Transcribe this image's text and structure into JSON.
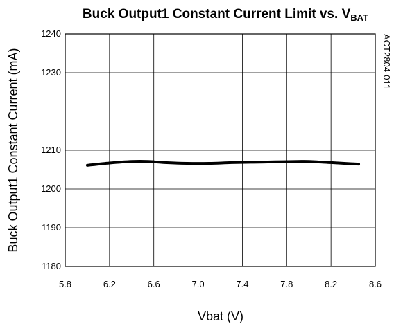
{
  "chart_data": {
    "type": "line",
    "title_main": "Buck Output1 Constant Current Limit vs. V",
    "title_sub": "BAT",
    "xlabel": "Vbat (V)",
    "ylabel": "Buck Output1 Constant Current (mA)",
    "side_label": "ACT2804-011",
    "xlim": [
      5.8,
      8.6
    ],
    "ylim": [
      1180,
      1240
    ],
    "x_ticks": [
      "5.8",
      "6.2",
      "6.6",
      "7.0",
      "7.4",
      "7.8",
      "8.2",
      "8.6"
    ],
    "y_ticks": [
      "1240",
      "1230",
      "1210",
      "1200",
      "1190",
      "1180"
    ],
    "y_tick_values": [
      1240,
      1230,
      1210,
      1200,
      1190,
      1180
    ],
    "x_tick_values": [
      5.8,
      6.2,
      6.6,
      7.0,
      7.4,
      7.8,
      8.2,
      8.6
    ],
    "grid": true,
    "series": [
      {
        "x": [
          6.0,
          6.2,
          6.4,
          6.55,
          6.7,
          6.9,
          7.1,
          7.3,
          7.5,
          7.7,
          7.9,
          8.0,
          8.2,
          8.45
        ],
        "y": [
          1206.1,
          1206.7,
          1207.1,
          1207.1,
          1206.8,
          1206.6,
          1206.6,
          1206.8,
          1206.9,
          1207.0,
          1207.1,
          1207.1,
          1206.8,
          1206.4
        ]
      }
    ],
    "colors": {
      "line": "#000000",
      "grid": "#000000",
      "background": "#ffffff"
    }
  }
}
